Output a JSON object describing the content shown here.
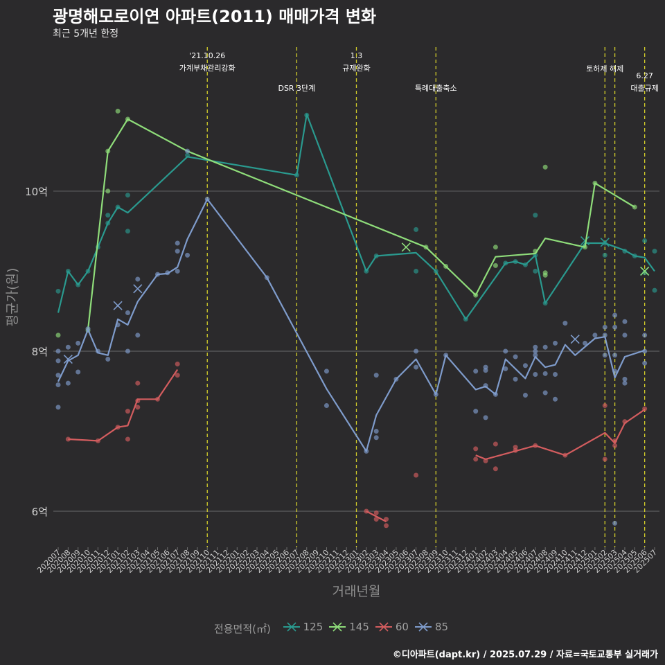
{
  "chart_data": {
    "type": "line",
    "title": "광명해모로이연 아파트(2011) 매매가격 변화",
    "subtitle": "최근 5개년 한정",
    "xlabel": "거래년월",
    "ylabel": "평균가(원)",
    "caption": "©디아파트(dapt.kr) / 2025.07.29 / 자료=국토교통부 실거래가",
    "legend_title": "전용면적(㎡)",
    "legend_placement": "bottom",
    "grid": true,
    "ylim": [
      5.55,
      11.8
    ],
    "y_ticks": [
      {
        "value": 6,
        "label": "6억"
      },
      {
        "value": 8,
        "label": "8억"
      },
      {
        "value": 10,
        "label": "10억"
      }
    ],
    "x_categories": [
      "202007",
      "202008",
      "202009",
      "202010",
      "202011",
      "202012",
      "202101",
      "202102",
      "202103",
      "202104",
      "202105",
      "202106",
      "202107",
      "202108",
      "202109",
      "202110",
      "202111",
      "202112",
      "202201",
      "202202",
      "202203",
      "202204",
      "202205",
      "202206",
      "202207",
      "202208",
      "202209",
      "202210",
      "202211",
      "202212",
      "202301",
      "202302",
      "202303",
      "202304",
      "202305",
      "202306",
      "202307",
      "202308",
      "202309",
      "202310",
      "202311",
      "202312",
      "202401",
      "202402",
      "202403",
      "202404",
      "202405",
      "202406",
      "202407",
      "202408",
      "202409",
      "202410",
      "202411",
      "202412",
      "202501",
      "202502",
      "202503",
      "202504",
      "202505",
      "202506",
      "202507"
    ],
    "events": [
      {
        "x": "202110",
        "label": "'21.10.26\n가계부채관리강화",
        "row": 0
      },
      {
        "x": "202207",
        "label": "DSR 3단계",
        "row": 1
      },
      {
        "x": "202301",
        "label": "1.3\n규제완화",
        "row": 0
      },
      {
        "x": "202309",
        "label": "특례대출축소",
        "row": 1
      },
      {
        "x": "202502",
        "label": "토허제 해제",
        "row": 2
      },
      {
        "x": "202503",
        "label": "",
        "row": 2
      },
      {
        "x": "202506",
        "label": "6.27\n대출규제",
        "row": 3
      }
    ],
    "series": [
      {
        "name": "125",
        "color": "#2a9a8f",
        "line": [
          [
            "202007",
            8.48
          ],
          [
            "202008",
            9.0
          ],
          [
            "202009",
            8.83
          ],
          [
            "202010",
            9.0
          ],
          [
            "202011",
            9.3
          ],
          [
            "202012",
            9.6
          ],
          [
            "202101",
            9.8
          ],
          [
            "202102",
            9.73
          ],
          [
            "202108",
            10.43
          ],
          [
            "202207",
            10.2
          ],
          [
            "202208",
            10.96
          ],
          [
            "202302",
            9.0
          ],
          [
            "202303",
            9.19
          ],
          [
            "202307",
            9.23
          ],
          [
            "202309",
            9.0
          ],
          [
            "202312",
            8.4
          ],
          [
            "202404",
            9.1
          ],
          [
            "202405",
            9.12
          ],
          [
            "202406",
            9.08
          ],
          [
            "202407",
            9.2
          ],
          [
            "202408",
            8.6
          ],
          [
            "202412",
            9.35
          ],
          [
            "202502",
            9.35
          ],
          [
            "202504",
            9.26
          ],
          [
            "202505",
            9.19
          ],
          [
            "202506",
            9.17
          ],
          [
            "202507",
            9.0
          ]
        ],
        "points": [
          [
            "202007",
            8.75
          ],
          [
            "202008",
            9.0
          ],
          [
            "202009",
            8.83
          ],
          [
            "202010",
            9.0
          ],
          [
            "202011",
            9.3
          ],
          [
            "202012",
            9.7
          ],
          [
            "202012",
            9.6
          ],
          [
            "202101",
            9.8
          ],
          [
            "202102",
            9.95
          ],
          [
            "202102",
            9.5
          ],
          [
            "202108",
            10.45
          ],
          [
            "202207",
            10.2
          ],
          [
            "202208",
            10.95
          ],
          [
            "202302",
            9.0
          ],
          [
            "202303",
            9.19
          ],
          [
            "202307",
            9.52
          ],
          [
            "202307",
            9.0
          ],
          [
            "202309",
            9.0
          ],
          [
            "202312",
            8.4
          ],
          [
            "202404",
            9.1
          ],
          [
            "202405",
            9.12
          ],
          [
            "202406",
            9.08
          ],
          [
            "202407",
            9.7
          ],
          [
            "202407",
            9.0
          ],
          [
            "202407",
            9.2
          ],
          [
            "202408",
            8.6
          ],
          [
            "202502",
            9.35
          ],
          [
            "202502",
            9.2
          ],
          [
            "202504",
            9.25
          ],
          [
            "202505",
            9.19
          ],
          [
            "202506",
            9.38
          ],
          [
            "202506",
            8.98
          ],
          [
            "202507",
            9.25
          ],
          [
            "202507",
            8.76
          ]
        ],
        "cancelled": [
          [
            "202412",
            9.38
          ],
          [
            "202502",
            9.36
          ],
          [
            "202506",
            9.0
          ]
        ]
      },
      {
        "name": "145",
        "color": "#8fdd7a",
        "line": [
          [
            "202010",
            8.27
          ],
          [
            "202012",
            10.5
          ],
          [
            "202102",
            10.9
          ],
          [
            "202108",
            10.5
          ],
          [
            "202308",
            9.3
          ],
          [
            "202310",
            9.06
          ],
          [
            "202401",
            8.7
          ],
          [
            "202403",
            9.18
          ],
          [
            "202407",
            9.22
          ],
          [
            "202408",
            9.41
          ],
          [
            "202412",
            9.3
          ],
          [
            "202501",
            10.1
          ],
          [
            "202505",
            9.8
          ]
        ],
        "points": [
          [
            "202007",
            8.2
          ],
          [
            "202010",
            8.26
          ],
          [
            "202012",
            10.5
          ],
          [
            "202012",
            10.0
          ],
          [
            "202101",
            11.0
          ],
          [
            "202102",
            10.9
          ],
          [
            "202308",
            9.3
          ],
          [
            "202310",
            9.06
          ],
          [
            "202401",
            8.7
          ],
          [
            "202403",
            9.3
          ],
          [
            "202403",
            9.07
          ],
          [
            "202407",
            9.25
          ],
          [
            "202408",
            10.3
          ],
          [
            "202408",
            8.98
          ],
          [
            "202408",
            8.95
          ],
          [
            "202412",
            9.3
          ],
          [
            "202501",
            10.1
          ],
          [
            "202505",
            9.8
          ]
        ],
        "cancelled": [
          [
            "202306",
            9.3
          ],
          [
            "202506",
            9.0
          ]
        ]
      },
      {
        "name": "60",
        "color": "#d45d5f",
        "line": [
          [
            "202008",
            6.9
          ],
          [
            "202011",
            6.88
          ],
          [
            "202101",
            7.05
          ],
          [
            "202102",
            7.07
          ],
          [
            "202103",
            7.4
          ],
          [
            "202105",
            7.4
          ],
          [
            "202107",
            7.77
          ]
        ],
        "points": [
          [
            "202008",
            6.9
          ],
          [
            "202011",
            6.88
          ],
          [
            "202101",
            7.05
          ],
          [
            "202102",
            6.9
          ],
          [
            "202102",
            7.25
          ],
          [
            "202103",
            7.6
          ],
          [
            "202103",
            7.38
          ],
          [
            "202103",
            7.3
          ],
          [
            "202105",
            7.4
          ],
          [
            "202107",
            7.84
          ],
          [
            "202107",
            7.7
          ],
          [
            "202302",
            6.0
          ],
          [
            "202303",
            5.98
          ],
          [
            "202303",
            5.9
          ],
          [
            "202304",
            5.9
          ],
          [
            "202304",
            5.82
          ],
          [
            "202307",
            6.45
          ],
          [
            "202401",
            6.78
          ],
          [
            "202401",
            6.65
          ],
          [
            "202402",
            6.63
          ],
          [
            "202403",
            6.84
          ],
          [
            "202403",
            6.53
          ],
          [
            "202405",
            6.8
          ],
          [
            "202405",
            6.76
          ],
          [
            "202407",
            6.82
          ],
          [
            "202410",
            6.7
          ],
          [
            "202502",
            7.32
          ],
          [
            "202502",
            6.65
          ],
          [
            "202503",
            6.82
          ],
          [
            "202503",
            6.88
          ],
          [
            "202504",
            7.12
          ],
          [
            "202506",
            7.28
          ]
        ],
        "line2": [
          [
            "202302",
            6.0
          ],
          [
            "202304",
            5.87
          ]
        ],
        "line3": [
          [
            "202401",
            6.7
          ],
          [
            "202402",
            6.65
          ],
          [
            "202407",
            6.82
          ],
          [
            "202410",
            6.7
          ],
          [
            "202502",
            6.98
          ],
          [
            "202503",
            6.85
          ],
          [
            "202504",
            7.1
          ],
          [
            "202506",
            7.27
          ]
        ]
      },
      {
        "name": "85",
        "color": "#7f9ccc",
        "line": [
          [
            "202007",
            7.62
          ],
          [
            "202008",
            7.88
          ],
          [
            "202009",
            7.95
          ],
          [
            "202010",
            8.27
          ],
          [
            "202011",
            7.98
          ],
          [
            "202012",
            7.95
          ],
          [
            "202101",
            8.4
          ],
          [
            "202102",
            8.33
          ],
          [
            "202103",
            8.62
          ],
          [
            "202105",
            8.96
          ],
          [
            "202106",
            8.97
          ],
          [
            "202107",
            9.05
          ],
          [
            "202108",
            9.4
          ],
          [
            "202110",
            9.9
          ],
          [
            "202204",
            8.92
          ],
          [
            "202210",
            7.53
          ],
          [
            "202302",
            6.75
          ],
          [
            "202303",
            7.2
          ],
          [
            "202305",
            7.65
          ],
          [
            "202307",
            7.9
          ],
          [
            "202309",
            7.46
          ],
          [
            "202310",
            7.95
          ],
          [
            "202401",
            7.52
          ],
          [
            "202402",
            7.56
          ],
          [
            "202403",
            7.46
          ],
          [
            "202404",
            7.9
          ],
          [
            "202406",
            7.66
          ],
          [
            "202407",
            7.93
          ],
          [
            "202408",
            7.8
          ],
          [
            "202409",
            7.83
          ],
          [
            "202410",
            8.08
          ],
          [
            "202411",
            7.95
          ],
          [
            "202501",
            8.16
          ],
          [
            "202502",
            8.18
          ],
          [
            "202503",
            7.67
          ],
          [
            "202504",
            7.93
          ],
          [
            "202506",
            8.01
          ]
        ],
        "points": [
          [
            "202007",
            7.3
          ],
          [
            "202007",
            7.58
          ],
          [
            "202007",
            7.7
          ],
          [
            "202007",
            7.88
          ],
          [
            "202007",
            8.0
          ],
          [
            "202008",
            7.6
          ],
          [
            "202008",
            8.05
          ],
          [
            "202009",
            7.74
          ],
          [
            "202009",
            8.1
          ],
          [
            "202010",
            8.28
          ],
          [
            "202011",
            8.0
          ],
          [
            "202012",
            7.9
          ],
          [
            "202101",
            8.33
          ],
          [
            "202102",
            8.0
          ],
          [
            "202102",
            8.48
          ],
          [
            "202103",
            8.2
          ],
          [
            "202103",
            8.9
          ],
          [
            "202105",
            8.96
          ],
          [
            "202106",
            8.98
          ],
          [
            "202107",
            9.0
          ],
          [
            "202107",
            9.25
          ],
          [
            "202107",
            9.35
          ],
          [
            "202108",
            9.2
          ],
          [
            "202108",
            10.5
          ],
          [
            "202110",
            9.9
          ],
          [
            "202204",
            8.92
          ],
          [
            "202210",
            7.75
          ],
          [
            "202210",
            7.32
          ],
          [
            "202302",
            6.75
          ],
          [
            "202303",
            6.92
          ],
          [
            "202303",
            7.0
          ],
          [
            "202303",
            7.7
          ],
          [
            "202305",
            7.65
          ],
          [
            "202307",
            8.0
          ],
          [
            "202307",
            7.8
          ],
          [
            "202309",
            7.46
          ],
          [
            "202310",
            7.95
          ],
          [
            "202401",
            7.25
          ],
          [
            "202401",
            7.75
          ],
          [
            "202402",
            7.17
          ],
          [
            "202402",
            7.57
          ],
          [
            "202402",
            7.76
          ],
          [
            "202402",
            7.8
          ],
          [
            "202403",
            7.46
          ],
          [
            "202404",
            7.78
          ],
          [
            "202404",
            8.0
          ],
          [
            "202405",
            7.65
          ],
          [
            "202405",
            7.93
          ],
          [
            "202406",
            7.45
          ],
          [
            "202406",
            7.82
          ],
          [
            "202407",
            7.95
          ],
          [
            "202407",
            8.0
          ],
          [
            "202407",
            8.05
          ],
          [
            "202407",
            7.71
          ],
          [
            "202408",
            7.48
          ],
          [
            "202408",
            7.72
          ],
          [
            "202408",
            8.05
          ],
          [
            "202409",
            7.4
          ],
          [
            "202409",
            7.71
          ],
          [
            "202409",
            8.1
          ],
          [
            "202410",
            8.35
          ],
          [
            "202412",
            8.1
          ],
          [
            "202501",
            8.2
          ],
          [
            "202502",
            7.95
          ],
          [
            "202502",
            8.3
          ],
          [
            "202502",
            8.2
          ],
          [
            "202503",
            5.85
          ],
          [
            "202503",
            8.45
          ],
          [
            "202503",
            8.3
          ],
          [
            "202503",
            7.95
          ],
          [
            "202503",
            7.75
          ],
          [
            "202504",
            7.6
          ],
          [
            "202504",
            7.65
          ],
          [
            "202504",
            8.2
          ],
          [
            "202504",
            8.37
          ],
          [
            "202506",
            8.2
          ],
          [
            "202506",
            7.85
          ],
          [
            "202506",
            8.0
          ]
        ],
        "cancelled": [
          [
            "202008",
            7.9
          ],
          [
            "202101",
            8.57
          ],
          [
            "202103",
            8.78
          ],
          [
            "202411",
            8.15
          ]
        ]
      }
    ]
  }
}
